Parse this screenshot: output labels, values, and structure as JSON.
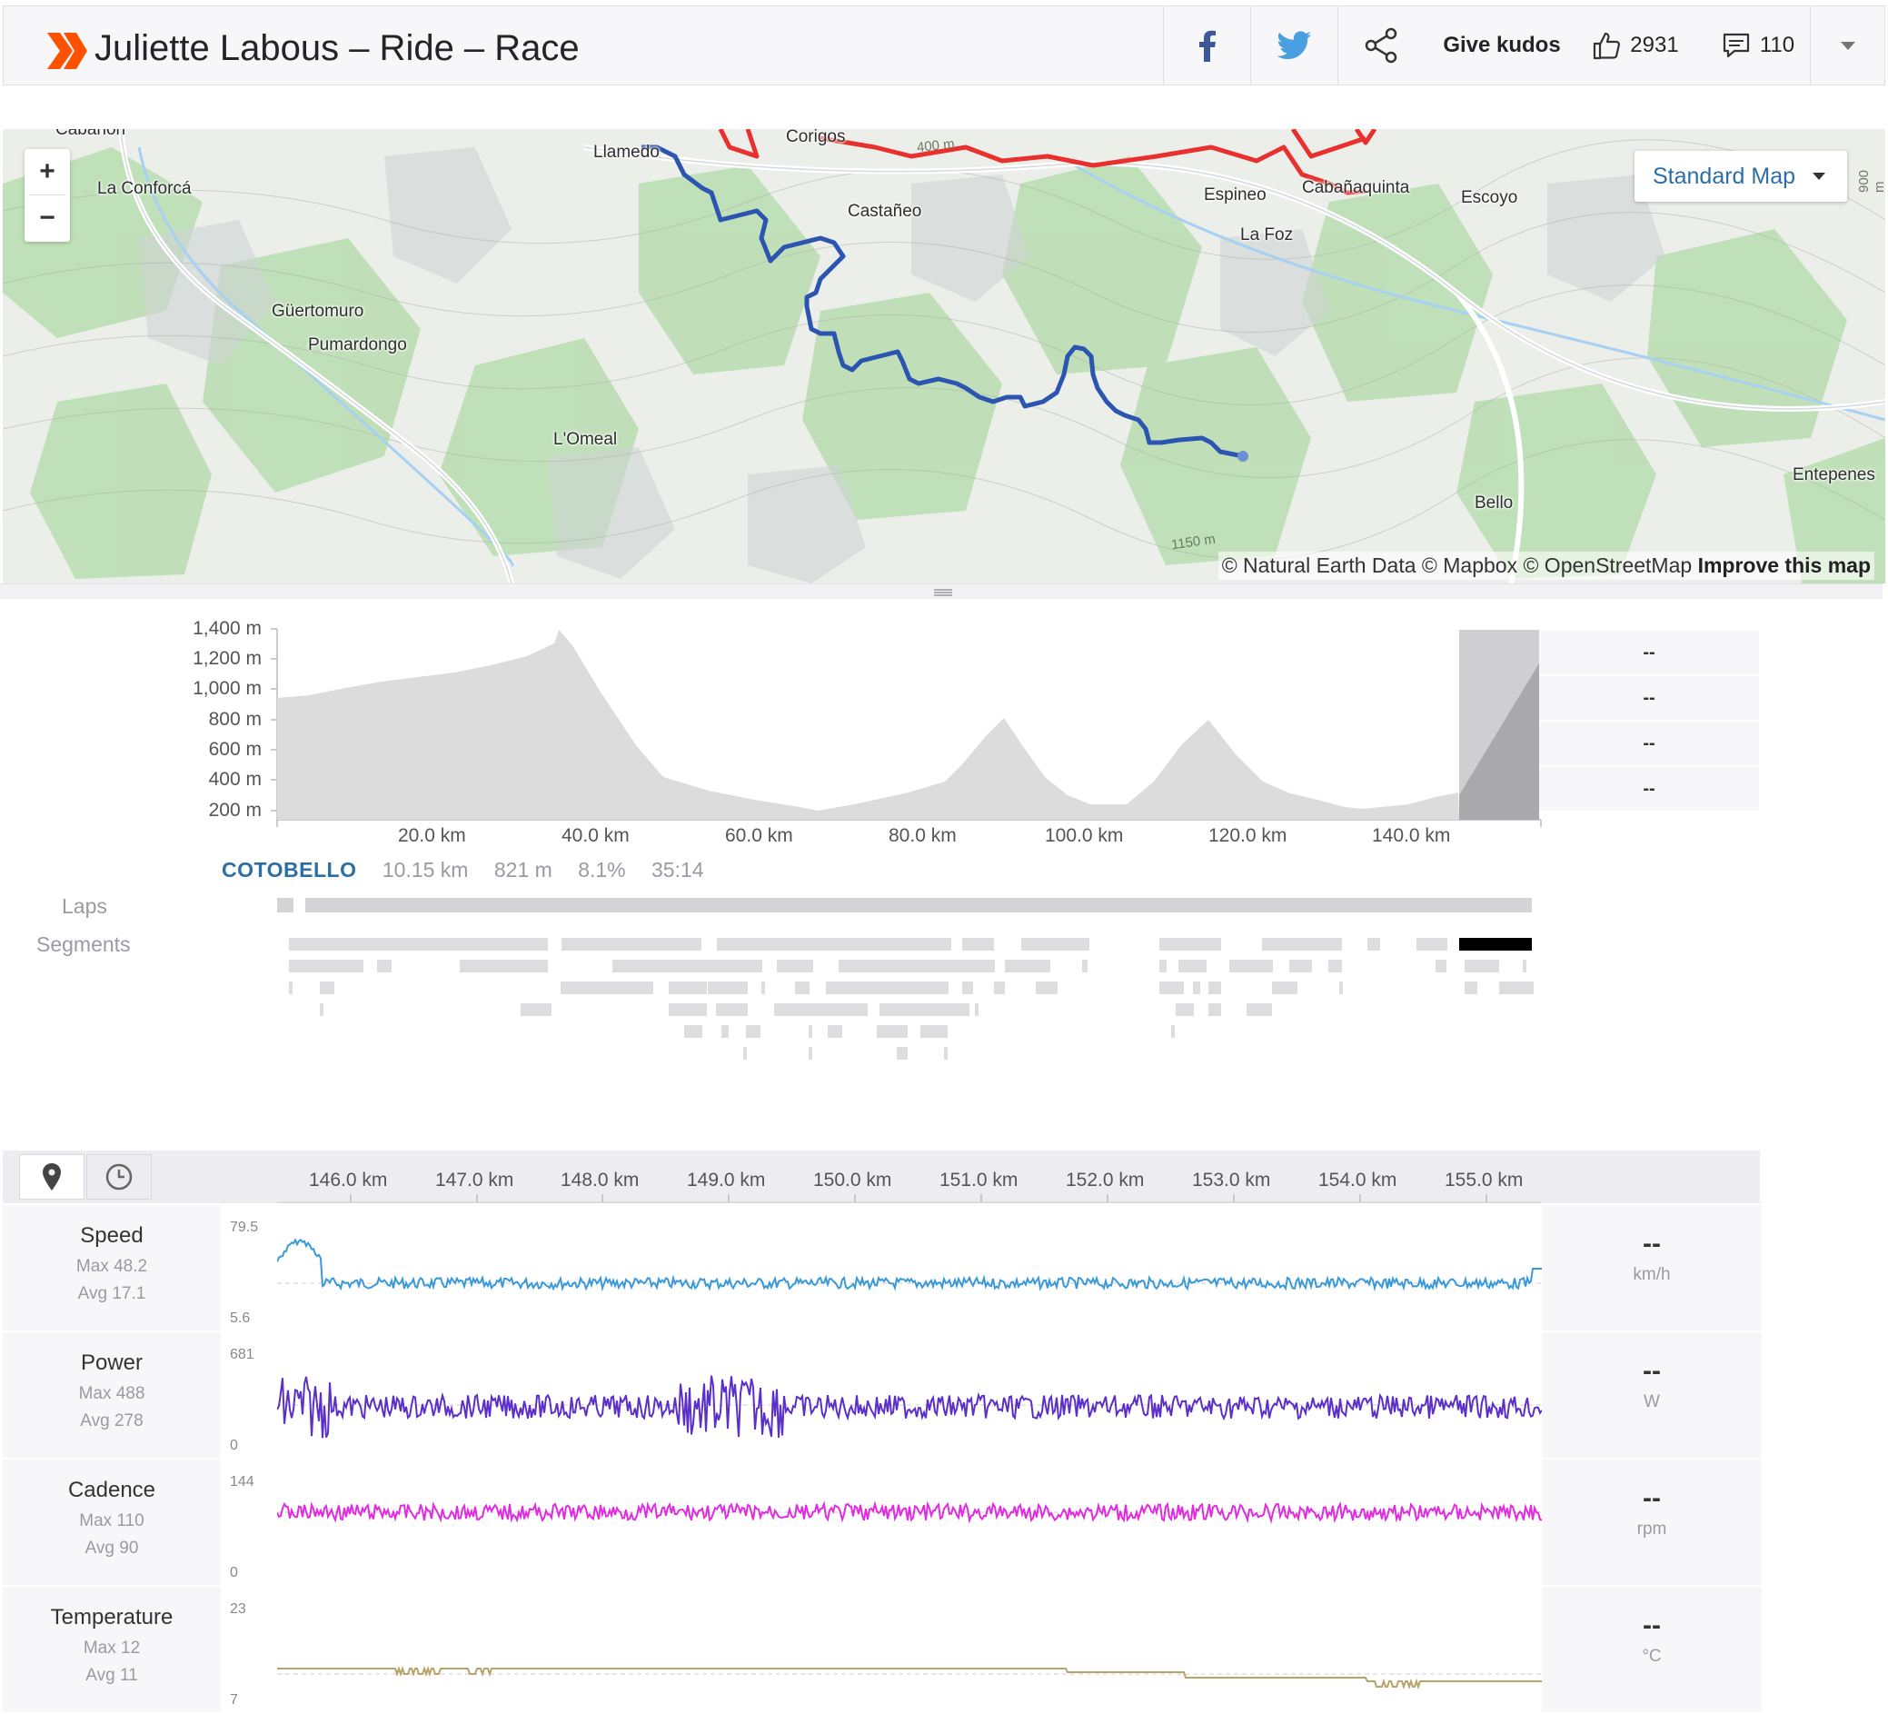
{
  "header": {
    "title": "Juliette Labous – Ride – Race",
    "kudos_label": "Give kudos",
    "kudos_count": "2931",
    "comment_count": "110"
  },
  "map": {
    "zoom_in": "+",
    "zoom_out": "−",
    "map_type": "Standard Map",
    "places": [
      "Cabañón",
      "Llamedo",
      "Corigos",
      "La Conforcá",
      "Castañeo",
      "Espineo",
      "Cabañaquinta",
      "Escoyo",
      "La Foz",
      "Güertomuro",
      "Pumardongo",
      "L'Omeal",
      "Entepenes",
      "Bello"
    ],
    "contours": [
      "1150 m",
      "900 m",
      "400 m"
    ],
    "attribution": "© Natural Earth Data © Mapbox © OpenStreetMap",
    "improve": "Improve this map",
    "route_color": "#2b55b0",
    "other_route_color": "#e8312e"
  },
  "elevation": {
    "y_ticks": [
      "1,400 m",
      "1,200 m",
      "1,000 m",
      "800 m",
      "600 m",
      "400 m",
      "200 m"
    ],
    "x_ticks": [
      "20.0 km",
      "40.0 km",
      "60.0 km",
      "80.0 km",
      "100.0 km",
      "120.0 km",
      "140.0 km"
    ],
    "side_values": [
      "--",
      "--",
      "--",
      "--"
    ]
  },
  "segment": {
    "name": "COTOBELLO",
    "distance": "10.15 km",
    "elevation": "821 m",
    "grade": "8.1%",
    "time": "35:14"
  },
  "rows": {
    "laps": "Laps",
    "segments": "Segments"
  },
  "streams_axis": [
    "146.0 km",
    "147.0 km",
    "148.0 km",
    "149.0 km",
    "150.0 km",
    "151.0 km",
    "152.0 km",
    "153.0 km",
    "154.0 km",
    "155.0 km"
  ],
  "streams": {
    "speed": {
      "name": "Speed",
      "max": "Max 48.2",
      "avg": "Avg 17.1",
      "ymax": "79.5",
      "ymin": "5.6",
      "value": "--",
      "unit": "km/h",
      "color": "#3a9ad9"
    },
    "power": {
      "name": "Power",
      "max": "Max 488",
      "avg": "Avg 278",
      "ymax": "681",
      "ymin": "0",
      "value": "--",
      "unit": "W",
      "color": "#5b2fc8"
    },
    "cadence": {
      "name": "Cadence",
      "max": "Max 110",
      "avg": "Avg 90",
      "ymax": "144",
      "ymin": "0",
      "value": "--",
      "unit": "rpm",
      "color": "#e02be0"
    },
    "temperature": {
      "name": "Temperature",
      "max": "Max 12",
      "avg": "Avg 11",
      "ymax": "23",
      "ymin": "7",
      "value": "--",
      "unit": "°C",
      "color": "#b8a36a"
    }
  }
}
